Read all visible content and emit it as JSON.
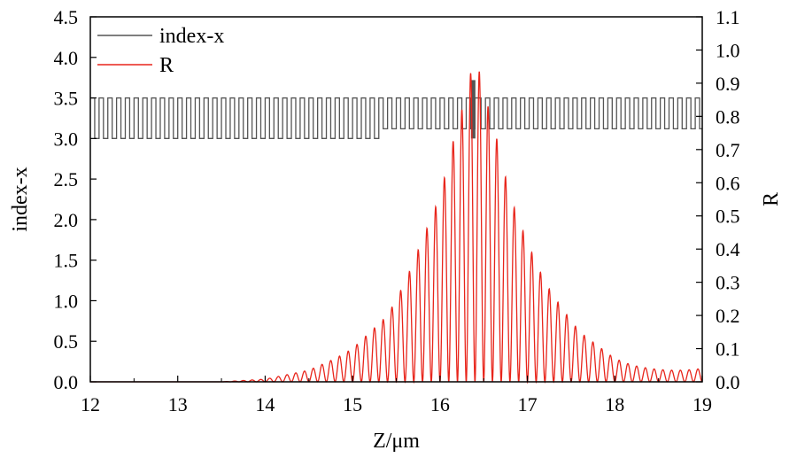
{
  "chart_data": {
    "type": "line",
    "xlabel": "Z/μm",
    "ylabel": "index-x",
    "y2label": "R",
    "xlim": [
      12,
      19
    ],
    "ylim": [
      0,
      4.5
    ],
    "y2lim": [
      0,
      1.1
    ],
    "x_ticks": [
      "12",
      "13",
      "14",
      "15",
      "16",
      "17",
      "18",
      "19"
    ],
    "y_ticks": [
      "0.0",
      "0.5",
      "1.0",
      "1.5",
      "2.0",
      "2.5",
      "3.0",
      "3.5",
      "4.0",
      "4.5"
    ],
    "y2_ticks": [
      "0.0",
      "0.1",
      "0.2",
      "0.3",
      "0.4",
      "0.5",
      "0.6",
      "0.7",
      "0.8",
      "0.9",
      "1.0",
      "1.1"
    ],
    "grid": false,
    "legend_position": "top-left",
    "series": [
      {
        "name": "index-x",
        "color": "#555555",
        "axis": "left",
        "form": "square-wave",
        "period_um": 0.1,
        "segments": [
          {
            "x_start": 12.0,
            "x_end": 15.3,
            "low": 3.0,
            "high": 3.5
          },
          {
            "x_start": 15.3,
            "x_end": 16.42,
            "low": 3.12,
            "high": 3.5
          },
          {
            "x_start": 16.42,
            "x_end": 19.0,
            "low": 3.12,
            "high": 3.5
          }
        ],
        "defect": {
          "x": 16.38,
          "width": 0.05,
          "value": 3.72
        }
      },
      {
        "name": "R",
        "color": "#e8251b",
        "axis": "right",
        "form": "oscillating-envelope",
        "oscillation_period_um": 0.1,
        "envelope_peaks": [
          {
            "x": 12.0,
            "y": 0.0
          },
          {
            "x": 13.5,
            "y": 0.0
          },
          {
            "x": 14.0,
            "y": 0.008
          },
          {
            "x": 14.5,
            "y": 0.035
          },
          {
            "x": 14.8,
            "y": 0.07
          },
          {
            "x": 15.0,
            "y": 0.1
          },
          {
            "x": 15.2,
            "y": 0.15
          },
          {
            "x": 15.4,
            "y": 0.2
          },
          {
            "x": 15.6,
            "y": 0.3
          },
          {
            "x": 15.8,
            "y": 0.43
          },
          {
            "x": 16.0,
            "y": 0.56
          },
          {
            "x": 16.2,
            "y": 0.78
          },
          {
            "x": 16.3,
            "y": 0.86
          },
          {
            "x": 16.4,
            "y": 1.0
          },
          {
            "x": 16.5,
            "y": 0.87
          },
          {
            "x": 16.6,
            "y": 0.79
          },
          {
            "x": 16.8,
            "y": 0.56
          },
          {
            "x": 17.0,
            "y": 0.42
          },
          {
            "x": 17.2,
            "y": 0.3
          },
          {
            "x": 17.4,
            "y": 0.22
          },
          {
            "x": 17.6,
            "y": 0.15
          },
          {
            "x": 17.8,
            "y": 0.11
          },
          {
            "x": 18.0,
            "y": 0.07
          },
          {
            "x": 18.2,
            "y": 0.05
          },
          {
            "x": 18.4,
            "y": 0.04
          },
          {
            "x": 18.6,
            "y": 0.035
          },
          {
            "x": 18.8,
            "y": 0.035
          },
          {
            "x": 19.0,
            "y": 0.04
          }
        ]
      }
    ]
  }
}
